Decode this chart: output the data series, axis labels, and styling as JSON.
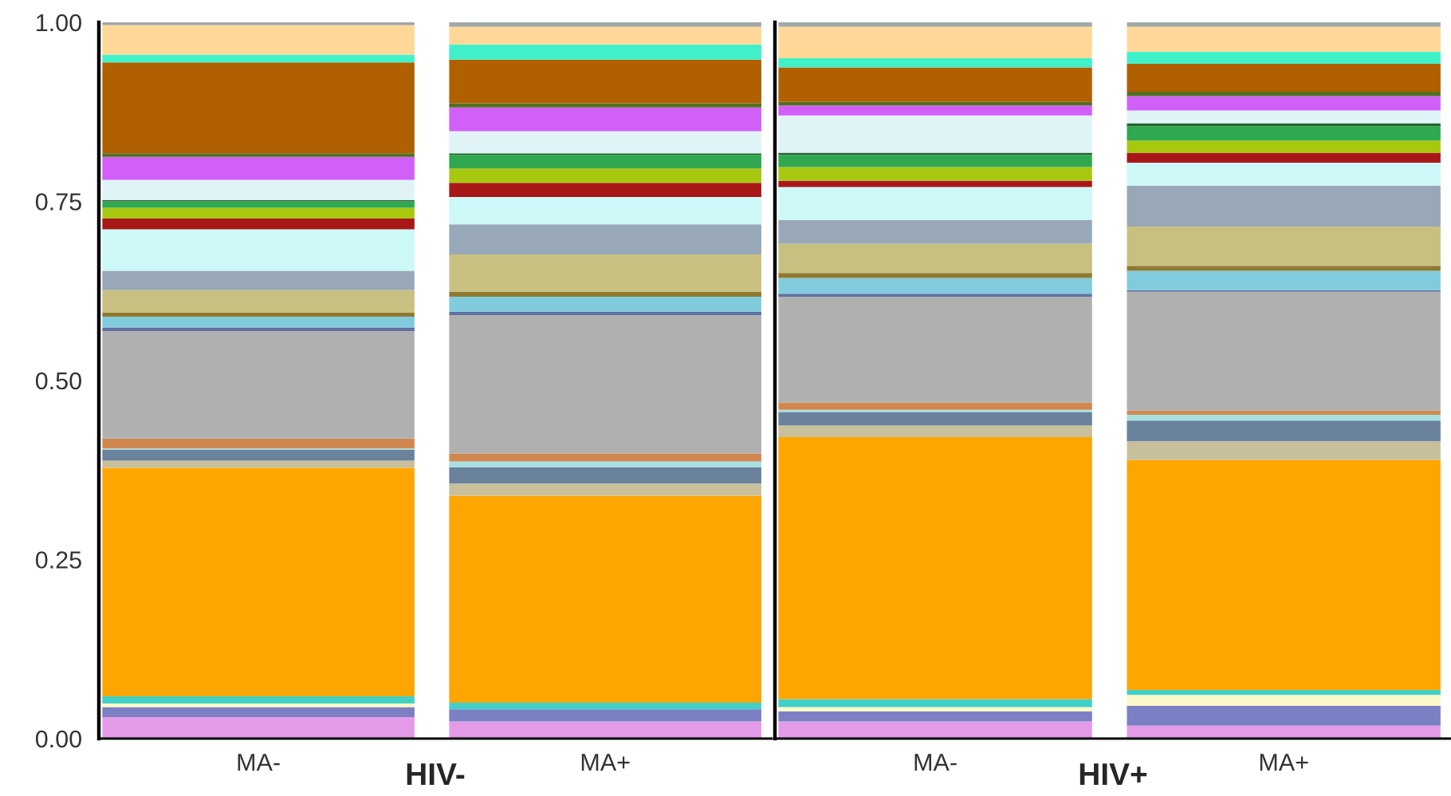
{
  "chart_data": [
    {
      "type": "bar",
      "stacked": true,
      "xlabel": "HIV-",
      "categories": [
        "MA-",
        "MA+"
      ],
      "ylim": [
        0,
        1
      ],
      "yticks": [
        {
          "value": 0,
          "label": "0.00"
        },
        {
          "value": 0.25,
          "label": "0.25"
        },
        {
          "value": 0.5,
          "label": "0.50"
        },
        {
          "value": 0.75,
          "label": "0.75"
        },
        {
          "value": 1,
          "label": "1.00"
        }
      ],
      "series": [
        {
          "color": "#e39be8",
          "values": [
            0.03,
            0.024
          ]
        },
        {
          "color": "#7b7fc4",
          "values": [
            0.014,
            0.017
          ]
        },
        {
          "color": "#fff8c8",
          "values": [
            0.005,
            0
          ]
        },
        {
          "color": "#40d0c8",
          "values": [
            0.01,
            0.009
          ]
        },
        {
          "color": "#ffa500",
          "values": [
            0.319,
            0.289
          ]
        },
        {
          "color": "#c8c09a",
          "values": [
            0.01,
            0.017
          ]
        },
        {
          "color": "#6a829c",
          "values": [
            0.015,
            0.023
          ]
        },
        {
          "color": "#a8e0e0",
          "values": [
            0.002,
            0.008
          ]
        },
        {
          "color": "#d08850",
          "values": [
            0.014,
            0.011
          ]
        },
        {
          "color": "#b0b0b0",
          "values": [
            0.15,
            0.193
          ]
        },
        {
          "color": "#6070a0",
          "values": [
            0.005,
            0.005
          ]
        },
        {
          "color": "#80ccdd",
          "values": [
            0.015,
            0.021
          ]
        },
        {
          "color": "#907a30",
          "values": [
            0.006,
            0.007
          ]
        },
        {
          "color": "#c8c080",
          "values": [
            0.031,
            0.052
          ]
        },
        {
          "color": "#98a8b8",
          "values": [
            0.027,
            0.042
          ]
        },
        {
          "color": "#ccf8f8",
          "values": [
            0.058,
            0.038
          ]
        },
        {
          "color": "#a81818",
          "values": [
            0.015,
            0.02
          ]
        },
        {
          "color": "#a8c810",
          "values": [
            0.015,
            0.02
          ]
        },
        {
          "color": "#30a850",
          "values": [
            0.009,
            0.019
          ]
        },
        {
          "color": "#206830",
          "values": [
            0.002,
            0.002
          ]
        },
        {
          "color": "#e0f4f8",
          "values": [
            0.028,
            0.031
          ]
        },
        {
          "color": "#d060f8",
          "values": [
            0.032,
            0.033
          ]
        },
        {
          "color": "#507020",
          "values": [
            0.005,
            0.006
          ]
        },
        {
          "color": "#b06000",
          "values": [
            0.127,
            0.061
          ]
        },
        {
          "color": "#40f0c8",
          "values": [
            0.011,
            0.021
          ]
        },
        {
          "color": "#ffd898",
          "values": [
            0.041,
            0.025
          ]
        },
        {
          "color": "#a0a8a8",
          "values": [
            0.004,
            0.006
          ]
        }
      ]
    },
    {
      "type": "bar",
      "stacked": true,
      "xlabel": "HIV+",
      "categories": [
        "MA-",
        "MA+"
      ],
      "ylim": [
        0,
        1
      ],
      "tick_labels": "x",
      "series": [
        {
          "color": "#e39be8",
          "values": [
            0.024,
            0.018
          ]
        },
        {
          "color": "#7b7fc4",
          "values": [
            0.014,
            0.028
          ]
        },
        {
          "color": "#fff8c8",
          "values": [
            0.006,
            0.015
          ]
        },
        {
          "color": "#40d0c8",
          "values": [
            0.011,
            0.007
          ]
        },
        {
          "color": "#ffa500",
          "values": [
            0.366,
            0.321
          ]
        },
        {
          "color": "#c8c09a",
          "values": [
            0.016,
            0.026
          ]
        },
        {
          "color": "#6a829c",
          "values": [
            0.019,
            0.029
          ]
        },
        {
          "color": "#a8e0e0",
          "values": [
            0.003,
            0.008
          ]
        },
        {
          "color": "#d08850",
          "values": [
            0.01,
            0.006
          ]
        },
        {
          "color": "#b0b0b0",
          "values": [
            0.148,
            0.166
          ]
        },
        {
          "color": "#6070a0",
          "values": [
            0.004,
            0.002
          ]
        },
        {
          "color": "#80ccdd",
          "values": [
            0.022,
            0.027
          ]
        },
        {
          "color": "#907a30",
          "values": [
            0.007,
            0.007
          ]
        },
        {
          "color": "#c8c080",
          "values": [
            0.041,
            0.055
          ]
        },
        {
          "color": "#98a8b8",
          "values": [
            0.033,
            0.057
          ]
        },
        {
          "color": "#ccf8f8",
          "values": [
            0.046,
            0.032
          ]
        },
        {
          "color": "#a81818",
          "values": [
            0.009,
            0.014
          ]
        },
        {
          "color": "#a8c810",
          "values": [
            0.019,
            0.017
          ]
        },
        {
          "color": "#30a850",
          "values": [
            0.017,
            0.02
          ]
        },
        {
          "color": "#206830",
          "values": [
            0.003,
            0.004
          ]
        },
        {
          "color": "#e0f4f8",
          "values": [
            0.052,
            0.018
          ]
        },
        {
          "color": "#d060f8",
          "values": [
            0.014,
            0.02
          ]
        },
        {
          "color": "#507020",
          "values": [
            0.005,
            0.006
          ]
        },
        {
          "color": "#b06000",
          "values": [
            0.048,
            0.039
          ]
        },
        {
          "color": "#40f0c8",
          "values": [
            0.013,
            0.017
          ]
        },
        {
          "color": "#ffd898",
          "values": [
            0.044,
            0.035
          ]
        },
        {
          "color": "#a0a8a8",
          "values": [
            0.006,
            0.006
          ]
        }
      ]
    }
  ]
}
